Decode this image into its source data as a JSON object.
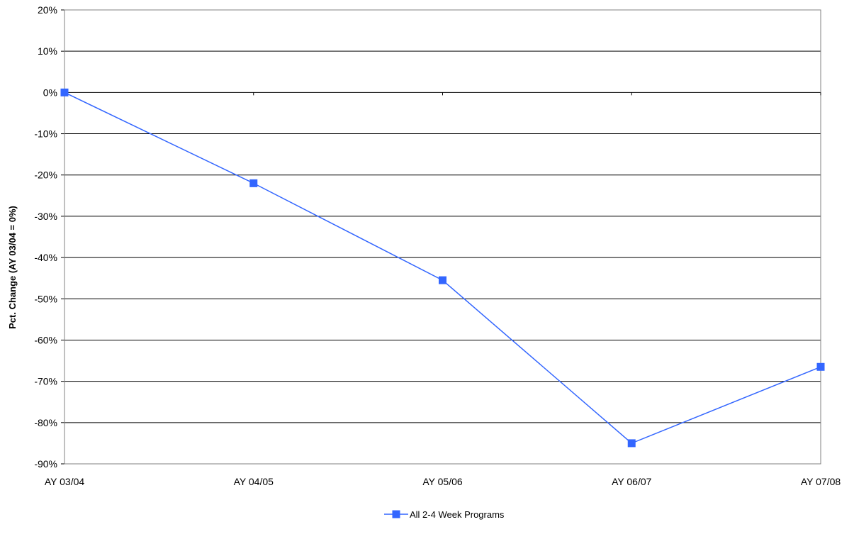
{
  "chart_data": {
    "type": "line",
    "title": "",
    "xlabel": "",
    "ylabel": "Pct. Change (AY 03/04 = 0%)",
    "categories": [
      "AY 03/04",
      "AY 04/05",
      "AY 05/06",
      "AY 06/07",
      "AY 07/08"
    ],
    "series": [
      {
        "name": "All 2-4 Week Programs",
        "values": [
          0,
          -22,
          -45.5,
          -85,
          -66.5
        ],
        "color": "#3366FF"
      }
    ],
    "ylim": [
      -90,
      20
    ],
    "yticks": [
      20,
      10,
      0,
      -10,
      -20,
      -30,
      -40,
      -50,
      -60,
      -70,
      -80,
      -90
    ],
    "ytick_format": "percent",
    "grid": true,
    "legend_position": "bottom"
  }
}
